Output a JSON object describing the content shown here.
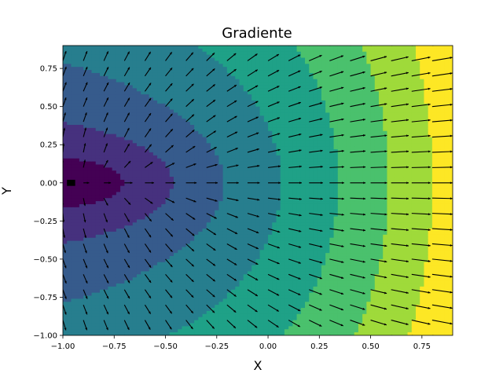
{
  "chart_data": {
    "type": "contour_quiver",
    "title": "Gradiente",
    "xlabel": "X",
    "ylabel": "Y",
    "xlim": [
      -1.0,
      0.9
    ],
    "ylim": [
      -1.0,
      0.9
    ],
    "x_ticks": [
      -1.0,
      -0.75,
      -0.5,
      -0.25,
      0.0,
      0.25,
      0.5,
      0.75
    ],
    "y_ticks": [
      -1.0,
      -0.75,
      -0.5,
      -0.25,
      0.0,
      0.25,
      0.5,
      0.75
    ],
    "x_tick_labels": [
      "−1.00",
      "−0.75",
      "−0.50",
      "−0.25",
      "0.00",
      "0.25",
      "0.50",
      "0.75"
    ],
    "y_tick_labels": [
      "−1.00",
      "−0.75",
      "−0.50",
      "−0.25",
      "0.00",
      "0.25",
      "0.50",
      "0.75"
    ],
    "colormap": "viridis",
    "grid": false,
    "contour_levels": 8,
    "quiver_grid": {
      "x_start": -1.0,
      "y_start": -1.0,
      "step": 0.1,
      "count": 20
    }
  }
}
